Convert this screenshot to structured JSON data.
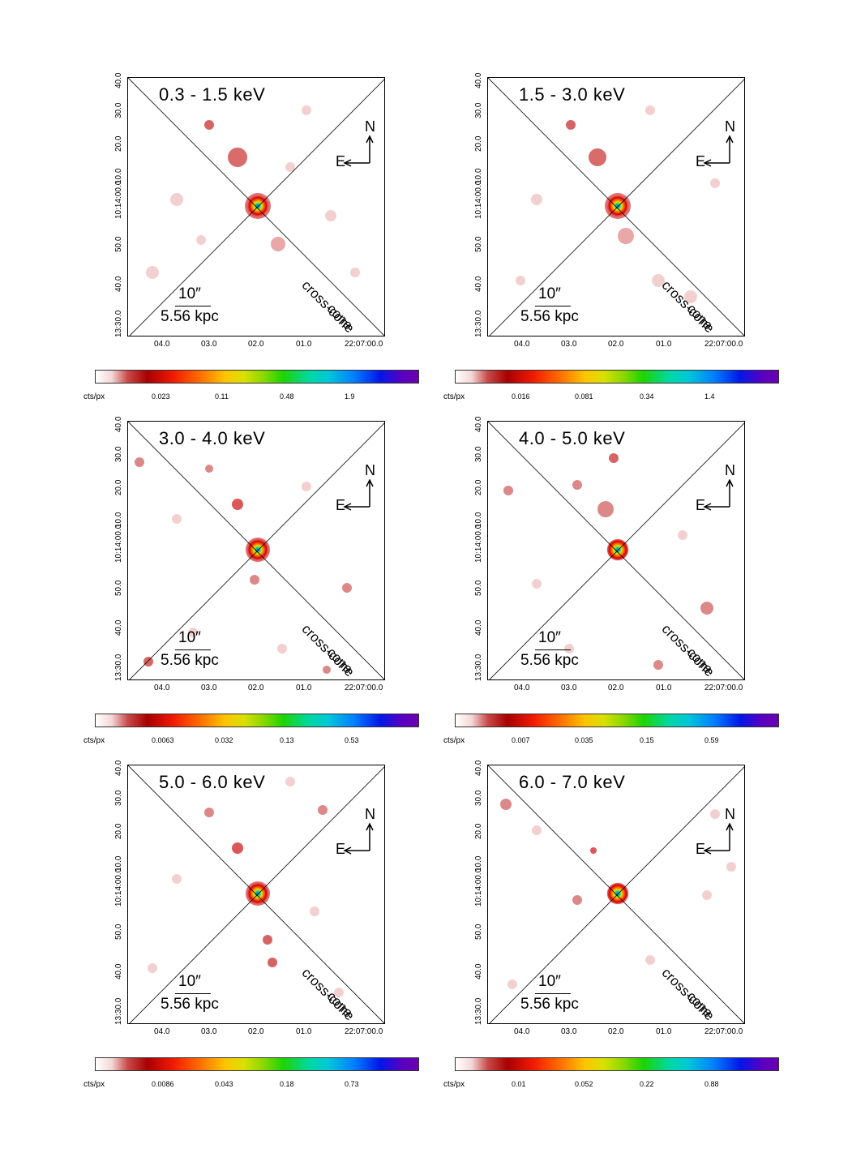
{
  "panels": [
    {
      "band": "0.3 - 1.5 keV",
      "colorbar_ticks": [
        "0.023",
        "0.11",
        "0.48",
        "1.9"
      ]
    },
    {
      "band": "1.5 - 3.0 keV",
      "colorbar_ticks": [
        "0.016",
        "0.081",
        "0.34",
        "1.4"
      ]
    },
    {
      "band": "3.0 - 4.0 keV",
      "colorbar_ticks": [
        "0.0063",
        "0.032",
        "0.13",
        "0.53"
      ]
    },
    {
      "band": "4.0 - 5.0 keV",
      "colorbar_ticks": [
        "0.007",
        "0.035",
        "0.15",
        "0.59"
      ]
    },
    {
      "band": "5.0 - 6.0 keV",
      "colorbar_ticks": [
        "0.0086",
        "0.043",
        "0.18",
        "0.73"
      ]
    },
    {
      "band": "6.0 - 7.0 keV",
      "colorbar_ticks": [
        "0.01",
        "0.052",
        "0.22",
        "0.88"
      ]
    }
  ],
  "common": {
    "north_label": "N",
    "east_label": "E",
    "scale_arcsec": "10″",
    "scale_kpc": "5.56 kpc",
    "cross_cone_label": "cross-cone",
    "cone_label": "cone",
    "colorbar_unit": "cts/px",
    "ra_ticks": [
      "04.0",
      "03.0",
      "02.0",
      "01.0",
      "22:07:00.0"
    ],
    "dec_ticks": [
      "13:30.0",
      "40.0",
      "50.0",
      "10:14:00.0",
      "10.0",
      "20.0",
      "30.0",
      "40.0"
    ]
  }
}
